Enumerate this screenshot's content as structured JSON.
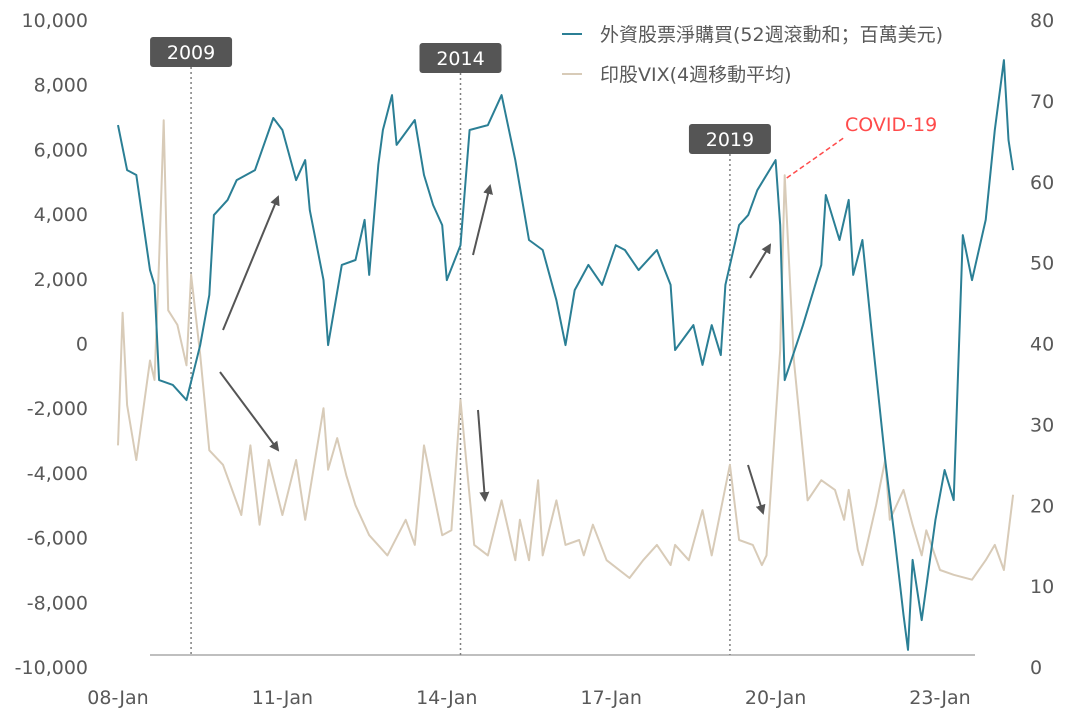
{
  "chart_data": {
    "type": "line",
    "title": "",
    "xlabel": "",
    "ylabel_left": "",
    "ylabel_right": "",
    "x_ticks": [
      "08-Jan",
      "11-Jan",
      "14-Jan",
      "17-Jan",
      "20-Jan",
      "23-Jan"
    ],
    "y_left_ticks": [
      "10,000",
      "8,000",
      "6,000",
      "4,000",
      "2,000",
      "0",
      "-2,000",
      "-4,000",
      "-6,000",
      "-8,000",
      "-10,000"
    ],
    "y_right_ticks": [
      "80",
      "70",
      "60",
      "50",
      "40",
      "30",
      "20",
      "10",
      "0"
    ],
    "ylim_left": [
      -10000,
      10000
    ],
    "ylim_right": [
      0,
      80
    ],
    "xlim": [
      "2008-01",
      "2024-06"
    ],
    "grid": false,
    "legend_position": "top-right",
    "series": [
      {
        "name": "外資股票淨購買(52週滾動和；百萬美元)",
        "axis": "left",
        "color": "#2b7f95",
        "points": [
          [
            "2008-01",
            6750
          ],
          [
            "2008-03",
            5360
          ],
          [
            "2008-05",
            5210
          ],
          [
            "2008-08",
            2270
          ],
          [
            "2008-09",
            1810
          ],
          [
            "2008-10",
            -1130
          ],
          [
            "2009-01",
            -1280
          ],
          [
            "2009-04",
            -1750
          ],
          [
            "2009-07",
            -50
          ],
          [
            "2009-09",
            1500
          ],
          [
            "2009-10",
            3970
          ],
          [
            "2010-01",
            4440
          ],
          [
            "2010-03",
            5050
          ],
          [
            "2010-07",
            5360
          ],
          [
            "2010-11",
            6970
          ],
          [
            "2011-01",
            6600
          ],
          [
            "2011-04",
            5050
          ],
          [
            "2011-06",
            5670
          ],
          [
            "2011-07",
            4120
          ],
          [
            "2011-10",
            1960
          ],
          [
            "2011-11",
            -50
          ],
          [
            "2012-02",
            2430
          ],
          [
            "2012-05",
            2580
          ],
          [
            "2012-07",
            3820
          ],
          [
            "2012-08",
            2120
          ],
          [
            "2012-10",
            5520
          ],
          [
            "2012-11",
            6600
          ],
          [
            "2013-01",
            7680
          ],
          [
            "2013-02",
            6140
          ],
          [
            "2013-06",
            6910
          ],
          [
            "2013-08",
            5210
          ],
          [
            "2013-10",
            4280
          ],
          [
            "2013-12",
            3660
          ],
          [
            "2014-01",
            1960
          ],
          [
            "2014-04",
            3040
          ],
          [
            "2014-06",
            6600
          ],
          [
            "2014-10",
            6750
          ],
          [
            "2015-01",
            7680
          ],
          [
            "2015-04",
            5670
          ],
          [
            "2015-07",
            3200
          ],
          [
            "2015-10",
            2890
          ],
          [
            "2016-01",
            1340
          ],
          [
            "2016-03",
            -50
          ],
          [
            "2016-05",
            1650
          ],
          [
            "2016-08",
            2430
          ],
          [
            "2016-11",
            1810
          ],
          [
            "2017-02",
            3040
          ],
          [
            "2017-04",
            2890
          ],
          [
            "2017-07",
            2270
          ],
          [
            "2017-11",
            2890
          ],
          [
            "2018-02",
            1810
          ],
          [
            "2018-03",
            -200
          ],
          [
            "2018-07",
            570
          ],
          [
            "2018-09",
            -660
          ],
          [
            "2018-11",
            570
          ],
          [
            "2019-01",
            -360
          ],
          [
            "2019-02",
            1810
          ],
          [
            "2019-05",
            3660
          ],
          [
            "2019-07",
            3970
          ],
          [
            "2019-09",
            4740
          ],
          [
            "2020-01",
            5670
          ],
          [
            "2020-02",
            3660
          ],
          [
            "2020-03",
            -1130
          ],
          [
            "2020-07",
            570
          ],
          [
            "2020-11",
            2430
          ],
          [
            "2020-12",
            4590
          ],
          [
            "2021-03",
            3200
          ],
          [
            "2021-05",
            4440
          ],
          [
            "2021-06",
            2120
          ],
          [
            "2021-08",
            3200
          ],
          [
            "2021-10",
            420
          ],
          [
            "2022-01",
            -3600
          ],
          [
            "2022-03",
            -5920
          ],
          [
            "2022-05",
            -8390
          ],
          [
            "2022-06",
            -9470
          ],
          [
            "2022-07",
            -6690
          ],
          [
            "2022-09",
            -8550
          ],
          [
            "2022-12",
            -5460
          ],
          [
            "2023-02",
            -3910
          ],
          [
            "2023-04",
            -4840
          ],
          [
            "2023-06",
            3350
          ],
          [
            "2023-08",
            1960
          ],
          [
            "2023-11",
            3820
          ],
          [
            "2024-01",
            6600
          ],
          [
            "2024-03",
            8760
          ],
          [
            "2024-04",
            6290
          ],
          [
            "2024-05",
            5360
          ]
        ]
      },
      {
        "name": "印股VIX(4週移動平均)",
        "axis": "right",
        "color": "#d8cbb8",
        "points": [
          [
            "2008-01",
            27.4
          ],
          [
            "2008-02",
            43.8
          ],
          [
            "2008-03",
            32.4
          ],
          [
            "2008-05",
            25.6
          ],
          [
            "2008-08",
            37.9
          ],
          [
            "2008-09",
            35.5
          ],
          [
            "2008-10",
            50.3
          ],
          [
            "2008-11",
            67.6
          ],
          [
            "2008-12",
            44.1
          ],
          [
            "2009-02",
            42.3
          ],
          [
            "2009-04",
            37.3
          ],
          [
            "2009-05",
            48.5
          ],
          [
            "2009-07",
            38.6
          ],
          [
            "2009-09",
            26.8
          ],
          [
            "2009-12",
            25.0
          ],
          [
            "2010-04",
            18.8
          ],
          [
            "2010-06",
            27.4
          ],
          [
            "2010-08",
            17.6
          ],
          [
            "2010-10",
            25.6
          ],
          [
            "2011-01",
            18.8
          ],
          [
            "2011-04",
            25.6
          ],
          [
            "2011-06",
            18.2
          ],
          [
            "2011-10",
            32.0
          ],
          [
            "2011-11",
            24.4
          ],
          [
            "2012-01",
            28.3
          ],
          [
            "2012-03",
            23.7
          ],
          [
            "2012-05",
            20.0
          ],
          [
            "2012-08",
            16.3
          ],
          [
            "2012-12",
            13.8
          ],
          [
            "2013-04",
            18.2
          ],
          [
            "2013-06",
            15.1
          ],
          [
            "2013-08",
            27.4
          ],
          [
            "2013-12",
            16.3
          ],
          [
            "2014-02",
            16.9
          ],
          [
            "2014-04",
            33.0
          ],
          [
            "2014-07",
            15.1
          ],
          [
            "2014-10",
            13.8
          ],
          [
            "2015-01",
            20.6
          ],
          [
            "2015-04",
            13.2
          ],
          [
            "2015-05",
            18.2
          ],
          [
            "2015-07",
            13.2
          ],
          [
            "2015-09",
            23.1
          ],
          [
            "2015-10",
            13.8
          ],
          [
            "2016-01",
            20.6
          ],
          [
            "2016-03",
            15.1
          ],
          [
            "2016-06",
            15.7
          ],
          [
            "2016-07",
            13.8
          ],
          [
            "2016-09",
            17.6
          ],
          [
            "2016-12",
            13.2
          ],
          [
            "2017-05",
            11.0
          ],
          [
            "2017-08",
            13.2
          ],
          [
            "2017-11",
            15.1
          ],
          [
            "2018-02",
            12.6
          ],
          [
            "2018-03",
            15.1
          ],
          [
            "2018-06",
            13.2
          ],
          [
            "2018-09",
            19.4
          ],
          [
            "2018-11",
            13.8
          ],
          [
            "2019-03",
            25.0
          ],
          [
            "2019-05",
            15.7
          ],
          [
            "2019-08",
            15.1
          ],
          [
            "2019-10",
            12.6
          ],
          [
            "2019-11",
            13.8
          ],
          [
            "2020-02",
            39.2
          ],
          [
            "2020-03",
            60.8
          ],
          [
            "2020-05",
            37.9
          ],
          [
            "2020-08",
            20.6
          ],
          [
            "2020-11",
            23.1
          ],
          [
            "2021-02",
            21.9
          ],
          [
            "2021-04",
            18.2
          ],
          [
            "2021-05",
            21.9
          ],
          [
            "2021-07",
            14.5
          ],
          [
            "2021-08",
            12.6
          ],
          [
            "2021-11",
            20.0
          ],
          [
            "2022-01",
            25.6
          ],
          [
            "2022-02",
            18.2
          ],
          [
            "2022-05",
            21.9
          ],
          [
            "2022-07",
            17.6
          ],
          [
            "2022-09",
            13.8
          ],
          [
            "2022-10",
            16.9
          ],
          [
            "2023-01",
            12.0
          ],
          [
            "2023-04",
            11.4
          ],
          [
            "2023-08",
            10.8
          ],
          [
            "2023-11",
            13.2
          ],
          [
            "2024-01",
            15.1
          ],
          [
            "2024-03",
            12.0
          ],
          [
            "2024-05",
            21.3
          ]
        ]
      }
    ],
    "annotations": {
      "period_markers": [
        {
          "label": "2009",
          "date": "2009-05"
        },
        {
          "label": "2014",
          "date": "2014-04"
        },
        {
          "label": "2019",
          "date": "2019-03"
        }
      ],
      "covid": {
        "label": "COVID-19",
        "date": "2020-03",
        "color": "#ff4b4b"
      },
      "marker_box_color": "#555555"
    }
  }
}
